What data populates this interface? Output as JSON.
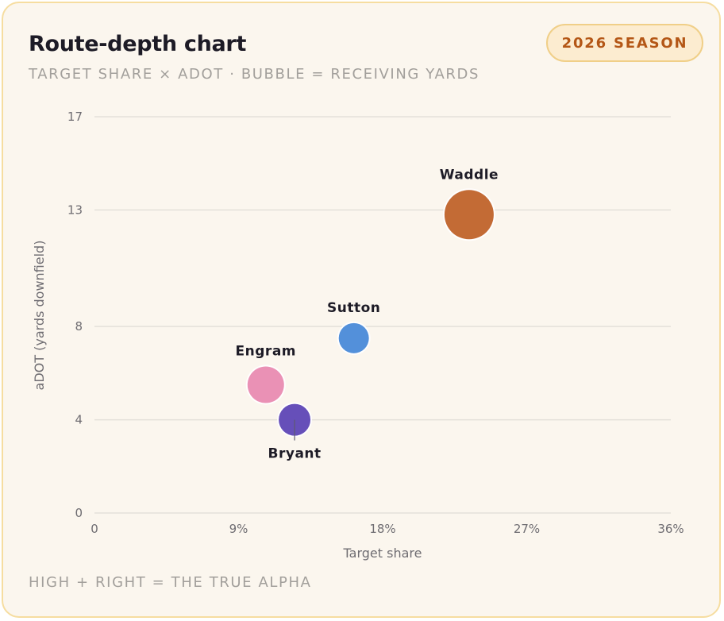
{
  "header": {
    "title": "Route-depth chart",
    "subtitle": "TARGET SHARE × ADOT · BUBBLE = RECEIVING YARDS",
    "badge": "2026 SEASON"
  },
  "footer": {
    "note": "HIGH + RIGHT = THE TRUE ALPHA"
  },
  "colors": {
    "card_background": "#fbf6ee",
    "card_border": "#f6dda0",
    "badge_text": "#b45716"
  },
  "chart_data": {
    "type": "scatter",
    "xlabel": "Target share",
    "ylabel": "aDOT (yards downfield)",
    "xlim": [
      0,
      36
    ],
    "ylim": [
      0,
      17
    ],
    "x_ticks": [
      0,
      9,
      18,
      27,
      36
    ],
    "x_tick_labels": [
      "0",
      "9%",
      "18%",
      "27%",
      "36%"
    ],
    "y_ticks": [
      0,
      4,
      8,
      13,
      17
    ],
    "y_tick_labels": [
      "0",
      "4",
      "8",
      "13",
      "17"
    ],
    "grid": "horizontal",
    "points": [
      {
        "label": "Waddle",
        "x": 23.4,
        "y": 12.8,
        "size": 31,
        "color": "#c0632a",
        "label_position": "above"
      },
      {
        "label": "Sutton",
        "x": 16.2,
        "y": 7.5,
        "size": 19,
        "color": "#4a8ad8",
        "label_position": "above"
      },
      {
        "label": "Engram",
        "x": 10.7,
        "y": 5.5,
        "size": 23,
        "color": "#e98bb1",
        "label_position": "above"
      },
      {
        "label": "Bryant",
        "x": 12.5,
        "y": 4.0,
        "size": 20,
        "color": "#5e46b5",
        "label_position": "below"
      }
    ]
  }
}
